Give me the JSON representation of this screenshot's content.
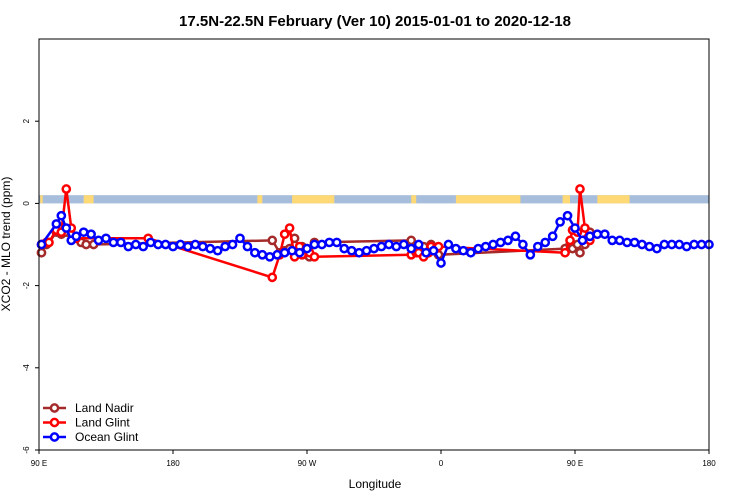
{
  "chart_data": {
    "type": "line",
    "title": "17.5N-22.5N February (Ver 10)   2015-01-01 to 2020-12-18",
    "xlabel": "Longitude",
    "ylabel": "XCO2 - MLO trend (ppm)",
    "xlim": [
      -90,
      180
    ],
    "ylim": [
      -6,
      4
    ],
    "xtick_values": [
      -90,
      -36,
      18,
      72,
      126,
      180
    ],
    "xtick_labels": [
      "90 E",
      "180",
      "90 W",
      "0",
      "90 E",
      "180"
    ],
    "ytick_values": [
      -6,
      -4,
      -2,
      0,
      2
    ],
    "ytick_labels": [
      "-6",
      "-4",
      "-2",
      "0",
      "2"
    ],
    "legend_position": "bottom-left",
    "band": {
      "y_range": [
        0,
        0.2
      ],
      "ocean_color": "#a6bddb",
      "land_color": "#fed976",
      "land_x_ranges": [
        [
          -89.5,
          -88.5
        ],
        [
          -72,
          -68
        ],
        [
          -2,
          0
        ],
        [
          12,
          29
        ],
        [
          60,
          62
        ],
        [
          78,
          104
        ],
        [
          121,
          124
        ],
        [
          135,
          148
        ]
      ]
    },
    "series": [
      {
        "name": "Land Nadir",
        "color": "#a52a2a",
        "x": [
          -89,
          -87,
          -86,
          -83,
          -81,
          -79,
          -77,
          -75,
          -73,
          -71,
          -68,
          4,
          7,
          9,
          11,
          13,
          15,
          16,
          18,
          19,
          21,
          60,
          62,
          63,
          65,
          67,
          68,
          70,
          71,
          122,
          124,
          125,
          127,
          128,
          130,
          131,
          132
        ],
        "values": [
          -1.2,
          -1.0,
          -0.95,
          -0.7,
          -0.75,
          -0.7,
          -0.75,
          -0.85,
          -0.95,
          -1.0,
          -1.0,
          -0.9,
          -1.2,
          -1.15,
          -1.1,
          -0.85,
          -1.1,
          -1.05,
          -1.25,
          -1.3,
          -0.95,
          -0.9,
          -1.1,
          -1.15,
          -1.05,
          -1.2,
          -1.0,
          -1.1,
          -1.25,
          -1.1,
          -1.0,
          -1.1,
          -1.0,
          -1.2,
          -1.0,
          -0.85,
          -0.7
        ]
      },
      {
        "name": "Land Glint",
        "color": "#ff0000",
        "x": [
          -89,
          -87,
          -86,
          -83,
          -81,
          -79,
          -77,
          -75,
          -46,
          4,
          7,
          9,
          11,
          13,
          15,
          16,
          18,
          19,
          21,
          60,
          62,
          63,
          65,
          67,
          68,
          70,
          71,
          122,
          124,
          125,
          127,
          128,
          130,
          131,
          132
        ],
        "values": [
          -1.0,
          -0.95,
          -0.95,
          -0.65,
          -0.7,
          0.35,
          -0.6,
          -0.85,
          -0.85,
          -1.8,
          -1.25,
          -0.75,
          -0.6,
          -1.3,
          -1.05,
          -1.25,
          -1.1,
          -1.2,
          -1.3,
          -1.25,
          -1.2,
          -1.2,
          -1.3,
          -1.2,
          -1.05,
          -1.1,
          -1.05,
          -1.2,
          -0.9,
          -0.65,
          -0.7,
          0.35,
          -0.6,
          -0.85,
          -0.9
        ]
      },
      {
        "name": "Ocean Glint",
        "color": "#0000ff",
        "x": [
          -89,
          -83,
          -81,
          -79,
          -77,
          -75,
          -72,
          -69,
          -66,
          -63,
          -60,
          -57,
          -54,
          -51,
          -48,
          -45,
          -42,
          -39,
          -36,
          -33,
          -30,
          -27,
          -24,
          -21,
          -18,
          -15,
          -12,
          -9,
          -6,
          -3,
          0,
          3,
          6,
          9,
          12,
          15,
          18,
          21,
          24,
          27,
          30,
          33,
          36,
          39,
          42,
          45,
          48,
          51,
          54,
          57,
          60,
          63,
          66,
          69,
          72,
          75,
          78,
          81,
          84,
          87,
          90,
          93,
          96,
          99,
          102,
          105,
          108,
          111,
          114,
          117,
          120,
          123,
          126,
          129,
          132,
          135,
          138,
          141,
          144,
          147,
          150,
          153,
          156,
          159,
          162,
          165,
          168,
          171,
          174,
          177,
          180
        ],
        "values": [
          -1.0,
          -0.5,
          -0.3,
          -0.6,
          -0.9,
          -0.8,
          -0.7,
          -0.75,
          -0.9,
          -0.85,
          -0.95,
          -0.95,
          -1.05,
          -1.0,
          -1.05,
          -0.95,
          -1.0,
          -1.0,
          -1.05,
          -1.0,
          -1.05,
          -1.0,
          -1.05,
          -1.1,
          -1.15,
          -1.05,
          -1.0,
          -0.85,
          -1.05,
          -1.2,
          -1.25,
          -1.3,
          -1.25,
          -1.2,
          -1.15,
          -1.2,
          -1.1,
          -1.0,
          -1.0,
          -0.95,
          -0.95,
          -1.1,
          -1.15,
          -1.2,
          -1.15,
          -1.1,
          -1.05,
          -1.0,
          -1.05,
          -1.0,
          -1.1,
          -1.0,
          -1.2,
          -1.15,
          -1.45,
          -1.0,
          -1.1,
          -1.15,
          -1.2,
          -1.1,
          -1.05,
          -1.0,
          -0.95,
          -0.9,
          -0.8,
          -1.0,
          -1.25,
          -1.05,
          -0.95,
          -0.8,
          -0.45,
          -0.3,
          -0.6,
          -0.9,
          -0.8,
          -0.75,
          -0.75,
          -0.9,
          -0.9,
          -0.95,
          -0.95,
          -1.0,
          -1.05,
          -1.1,
          -1.0,
          -1.0,
          -1.0,
          -1.05,
          -1.0,
          -1.0,
          -1.0
        ]
      }
    ]
  }
}
